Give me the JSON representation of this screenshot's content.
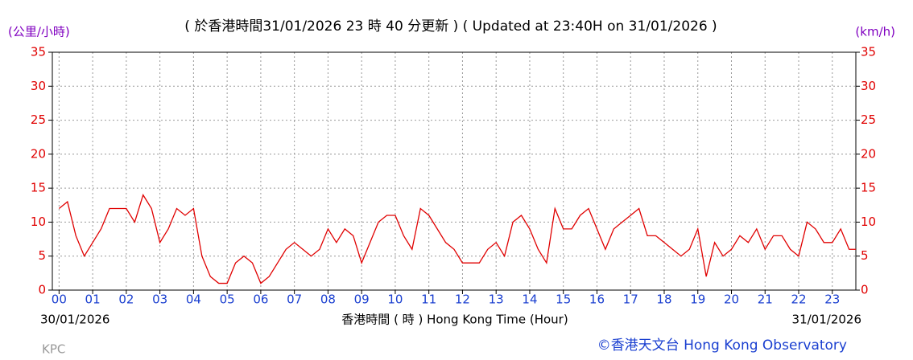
{
  "chart_data": {
    "type": "line",
    "title": "( 於香港時間31/01/2026 23 時 40 分更新 ) ( Updated at 23:40H on 31/01/2026 )",
    "y_label": "(公里/小時)",
    "y2_label": "(km/h)",
    "x_label": "香港時間 ( 時 ) Hong Kong Time (Hour)",
    "start_date": "30/01/2026",
    "end_date": "31/01/2026",
    "station": "KPC",
    "credit": "©香港天文台 Hong Kong Observatory",
    "x": [
      0,
      0.25,
      0.5,
      0.75,
      1,
      1.25,
      1.5,
      1.75,
      2,
      2.25,
      2.5,
      2.75,
      3,
      3.25,
      3.5,
      3.75,
      4,
      4.25,
      4.5,
      4.75,
      5,
      5.25,
      5.5,
      5.75,
      6,
      6.25,
      6.5,
      6.75,
      7,
      7.25,
      7.5,
      7.75,
      8,
      8.25,
      8.5,
      8.75,
      9,
      9.25,
      9.5,
      9.75,
      10,
      10.25,
      10.5,
      10.75,
      11,
      11.25,
      11.5,
      11.75,
      12,
      12.25,
      12.5,
      12.75,
      13,
      13.25,
      13.5,
      13.75,
      14,
      14.25,
      14.5,
      14.75,
      15,
      15.25,
      15.5,
      15.75,
      16,
      16.25,
      16.5,
      16.75,
      17,
      17.25,
      17.5,
      17.75,
      18,
      18.25,
      18.5,
      18.75,
      19,
      19.25,
      19.5,
      19.75,
      20,
      20.25,
      20.5,
      20.75,
      21,
      21.25,
      21.5,
      21.75,
      22,
      22.25,
      22.5,
      22.75,
      23,
      23.25,
      23.5,
      23.7
    ],
    "series": [
      {
        "color": "#e00000",
        "values": [
          12,
          13,
          8,
          5,
          7,
          9,
          12,
          12,
          12,
          10,
          14,
          12,
          7,
          9,
          12,
          11,
          12,
          5,
          2,
          1,
          1,
          4,
          5,
          4,
          1,
          2,
          4,
          6,
          7,
          6,
          5,
          6,
          9,
          7,
          9,
          8,
          4,
          7,
          10,
          11,
          11,
          8,
          6,
          12,
          11,
          9,
          7,
          6,
          4,
          4,
          4,
          6,
          7,
          5,
          10,
          11,
          9,
          6,
          4,
          12,
          9,
          9,
          11,
          12,
          9,
          6,
          9,
          10,
          11,
          12,
          8,
          8,
          7,
          6,
          5,
          6,
          9,
          2,
          7,
          5,
          6,
          8,
          7,
          9,
          6,
          8,
          8,
          6,
          5,
          10,
          9,
          7,
          7,
          9,
          6,
          6
        ]
      }
    ],
    "xlim": [
      -0.2,
      23.7
    ],
    "xticks": [
      {
        "value": 0,
        "label": "00"
      },
      {
        "value": 1,
        "label": "01"
      },
      {
        "value": 2,
        "label": "02"
      },
      {
        "value": 3,
        "label": "03"
      },
      {
        "value": 4,
        "label": "04"
      },
      {
        "value": 5,
        "label": "05"
      },
      {
        "value": 6,
        "label": "06"
      },
      {
        "value": 7,
        "label": "07"
      },
      {
        "value": 8,
        "label": "08"
      },
      {
        "value": 9,
        "label": "09"
      },
      {
        "value": 10,
        "label": "10"
      },
      {
        "value": 11,
        "label": "11"
      },
      {
        "value": 12,
        "label": "12"
      },
      {
        "value": 13,
        "label": "13"
      },
      {
        "value": 14,
        "label": "14"
      },
      {
        "value": 15,
        "label": "15"
      },
      {
        "value": 16,
        "label": "16"
      },
      {
        "value": 17,
        "label": "17"
      },
      {
        "value": 18,
        "label": "18"
      },
      {
        "value": 19,
        "label": "19"
      },
      {
        "value": 20,
        "label": "20"
      },
      {
        "value": 21,
        "label": "21"
      },
      {
        "value": 22,
        "label": "22"
      },
      {
        "value": 23,
        "label": "23"
      }
    ],
    "ylim": [
      0,
      35
    ],
    "yticks": [
      0,
      5,
      10,
      15,
      20,
      25,
      30,
      35
    ],
    "y2lim": [
      0,
      35
    ],
    "y2ticks": [
      0,
      5,
      10,
      15,
      20,
      25,
      30,
      35
    ],
    "grid": true
  }
}
